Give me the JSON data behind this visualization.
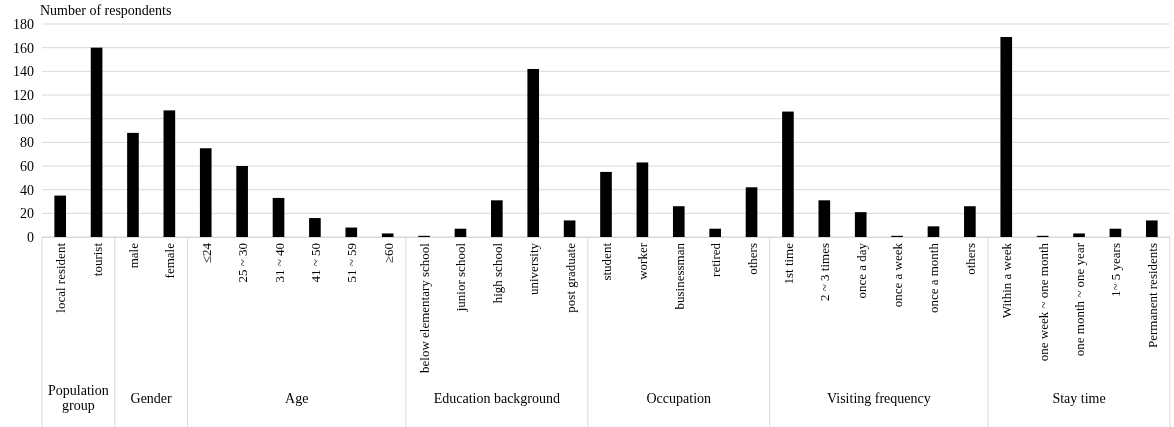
{
  "chart_data": {
    "type": "bar",
    "ylabel": "Number of respondents",
    "categories": [
      "local resident",
      "tourist",
      "male",
      "female",
      "≤24",
      "25 ~ 30",
      "31 ~ 40",
      "41 ~ 50",
      "51 ~ 59",
      "≥60",
      "below elementary school",
      "junior school",
      "high school",
      "university",
      "post graduate",
      "student",
      "worker",
      "businessman",
      "retired",
      "others",
      "1st time",
      "2 ~ 3 times",
      "once a day",
      "once a week",
      "once a month",
      "others",
      "Within a week",
      "one week ~ one month",
      "one month ~ one year",
      "1~ 5 years",
      "Permanent residents"
    ],
    "values": [
      35,
      160,
      88,
      107,
      75,
      60,
      33,
      16,
      8,
      3,
      1,
      7,
      31,
      142,
      14,
      55,
      63,
      26,
      7,
      42,
      106,
      31,
      21,
      1,
      9,
      26,
      169,
      1,
      3,
      7,
      14
    ],
    "color": "#000000",
    "ylim": [
      0,
      180
    ],
    "yticks": [
      0,
      20,
      40,
      60,
      80,
      100,
      120,
      140,
      160,
      180
    ],
    "grid": "y",
    "annotations": [
      "Population group",
      "Gender",
      "Age",
      "Education background",
      "Occupation",
      "Visiting frequency",
      "Stay time"
    ]
  }
}
